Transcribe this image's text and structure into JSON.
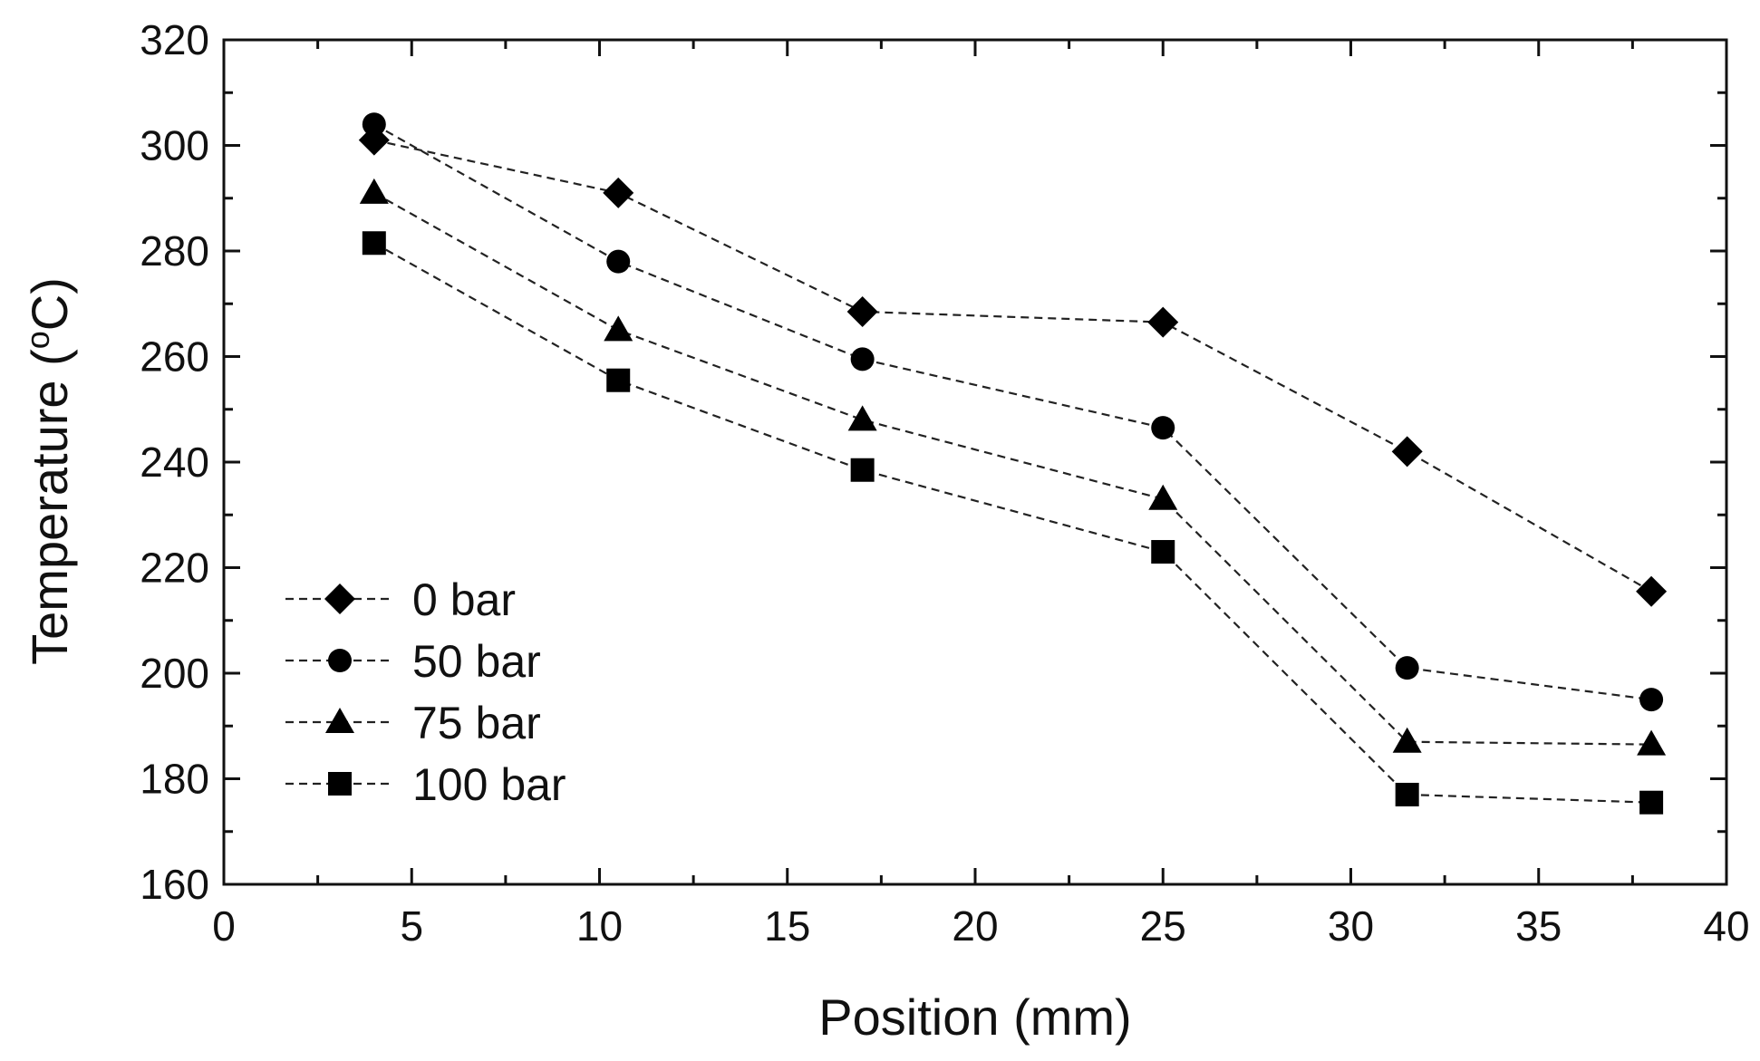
{
  "chart_data": {
    "type": "line",
    "title": "",
    "xlabel": "Position (mm)",
    "ylabel": "Temperature (°C)",
    "ylabel_parts": {
      "prefix": "Temperature (",
      "superscript": "o",
      "suffix": "C)"
    },
    "xlim": [
      0,
      40
    ],
    "ylim": [
      160,
      320
    ],
    "xticks": [
      0,
      5,
      10,
      15,
      20,
      25,
      30,
      35,
      40
    ],
    "xtick_labels": [
      "0",
      "5",
      "10",
      "15",
      "20",
      "25",
      "30",
      "35",
      "40"
    ],
    "yticks": [
      160,
      180,
      200,
      220,
      240,
      260,
      280,
      300,
      320
    ],
    "ytick_labels": [
      "160",
      "180",
      "200",
      "220",
      "240",
      "260",
      "280",
      "300",
      "320"
    ],
    "grid": false,
    "legend_position": "bottom-left",
    "line_style": "dashed",
    "color": "#000000",
    "x": [
      4,
      10.5,
      17,
      25,
      31.5,
      38
    ],
    "series": [
      {
        "name": "0 bar",
        "marker": "diamond",
        "values": [
          301,
          291,
          268.5,
          266.5,
          242,
          215.5
        ]
      },
      {
        "name": "50 bar",
        "marker": "circle",
        "values": [
          304,
          278,
          259.5,
          246.5,
          201,
          195
        ]
      },
      {
        "name": "75 bar",
        "marker": "triangle",
        "values": [
          291,
          265,
          248,
          233,
          187,
          186.5
        ]
      },
      {
        "name": "100 bar",
        "marker": "square",
        "values": [
          281.5,
          255.5,
          238.5,
          223,
          177,
          175.5
        ]
      }
    ]
  }
}
